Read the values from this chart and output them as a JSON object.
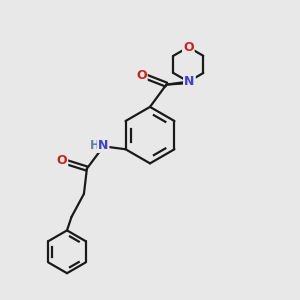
{
  "bg_color": "#e8e8e8",
  "bond_color": "#1a1a1a",
  "nitrogen_color": "#4040cc",
  "oxygen_color": "#cc2020",
  "nh_color": "#6080a0",
  "line_width": 1.6,
  "fig_size": [
    3.0,
    3.0
  ],
  "dpi": 100,
  "xlim": [
    0,
    10
  ],
  "ylim": [
    0,
    10
  ]
}
